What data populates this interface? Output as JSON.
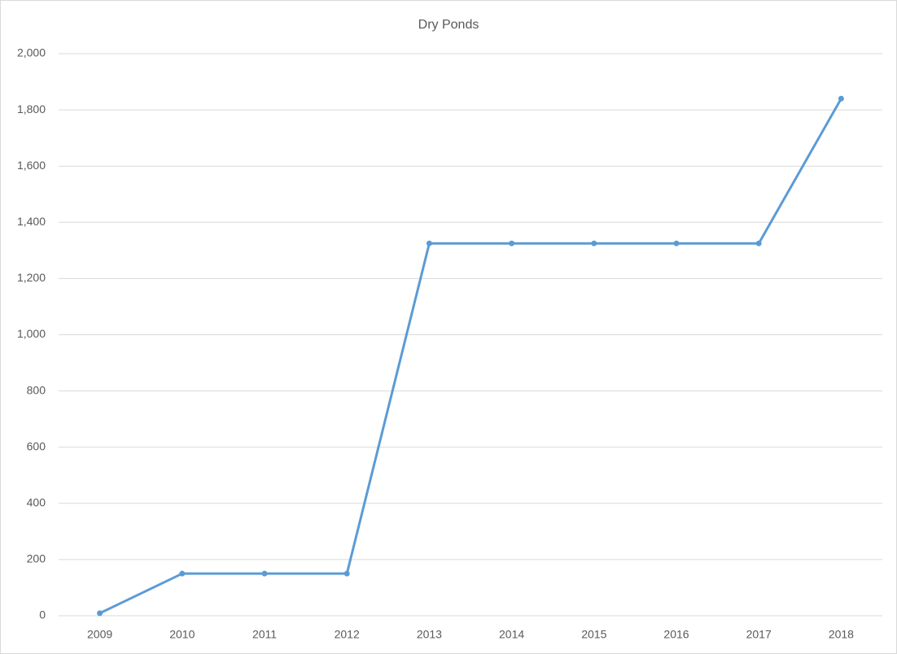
{
  "chart_data": {
    "type": "line",
    "title": "Dry Ponds",
    "categories": [
      "2009",
      "2010",
      "2011",
      "2012",
      "2013",
      "2014",
      "2015",
      "2016",
      "2017",
      "2018"
    ],
    "series": [
      {
        "name": "Dry Ponds",
        "color": "#5b9bd5",
        "values": [
          9,
          150,
          150,
          150,
          1325,
          1325,
          1325,
          1325,
          1325,
          1840
        ]
      }
    ],
    "ylim": [
      0,
      2000
    ],
    "yticks": [
      0,
      200,
      400,
      600,
      800,
      {
        "value": 1000,
        "label": "1,000"
      },
      {
        "value": 1200,
        "label": "1,200"
      },
      {
        "value": 1400,
        "label": "1,400"
      },
      {
        "value": 1600,
        "label": "1,600"
      },
      {
        "value": 1800,
        "label": "1,800"
      },
      {
        "value": 2000,
        "label": "2,000"
      }
    ],
    "grid": true
  }
}
